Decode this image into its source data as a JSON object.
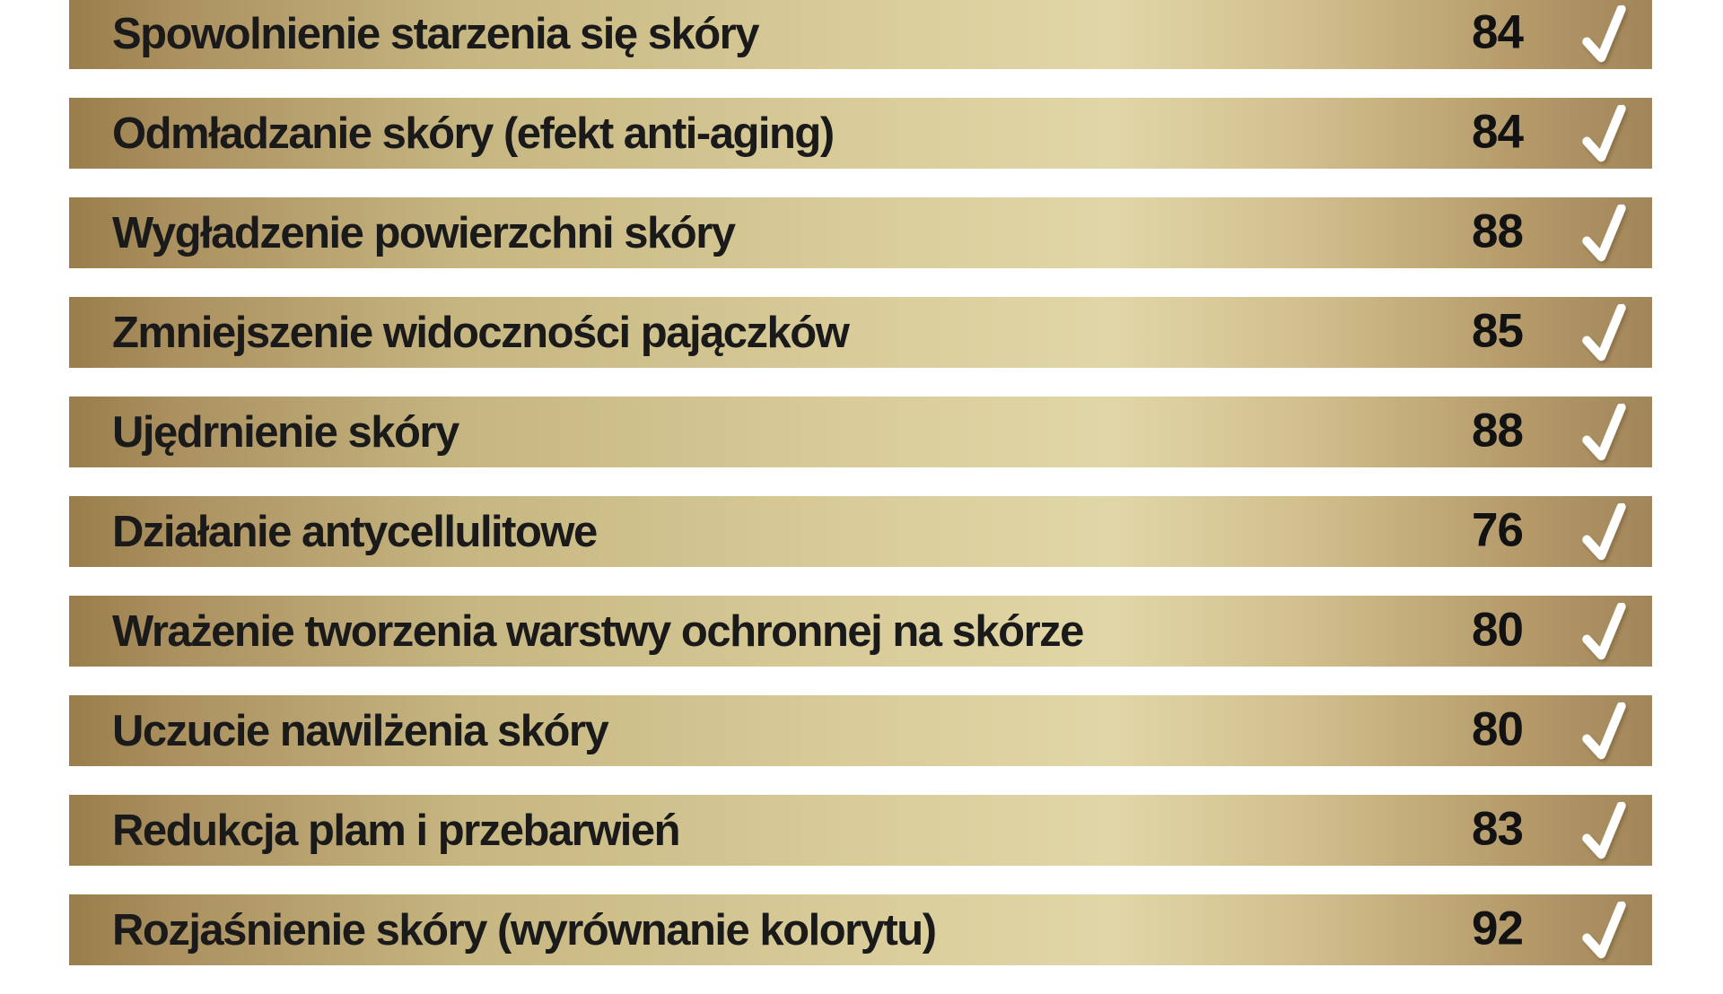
{
  "colors": {
    "background": "#ffffff",
    "bar_gold_dark": "#997e4b",
    "bar_gold_light": "#e1d6a7",
    "bar_gold_right": "#a1865a",
    "label_text": "#1a1a1a",
    "score_text": "#121212",
    "check": "#ffffff"
  },
  "chart_data": {
    "type": "table",
    "columns": [
      "benefit_label",
      "score",
      "confirmed_check"
    ],
    "legend_position": "none",
    "grid": false,
    "rows": [
      {
        "label": "Spowolnienie starzenia się skóry",
        "score": 84,
        "checked": true
      },
      {
        "label": "Odmładzanie skóry (efekt anti-aging)",
        "score": 84,
        "checked": true
      },
      {
        "label": "Wygładzenie powierzchni skóry",
        "score": 88,
        "checked": true
      },
      {
        "label": "Zmniejszenie widoczności pajączków",
        "score": 85,
        "checked": true
      },
      {
        "label": "Ujędrnienie skóry",
        "score": 88,
        "checked": true
      },
      {
        "label": "Działanie antycellulitowe",
        "score": 76,
        "checked": true
      },
      {
        "label": "Wrażenie tworzenia warstwy ochronnej na skórze",
        "score": 80,
        "checked": true
      },
      {
        "label": "Uczucie nawilżenia skóry",
        "score": 80,
        "checked": true
      },
      {
        "label": "Redukcja plam i przebarwień",
        "score": 83,
        "checked": true
      },
      {
        "label": "Rozjaśnienie skóry (wyrównanie kolorytu)",
        "score": 92,
        "checked": true
      }
    ]
  }
}
